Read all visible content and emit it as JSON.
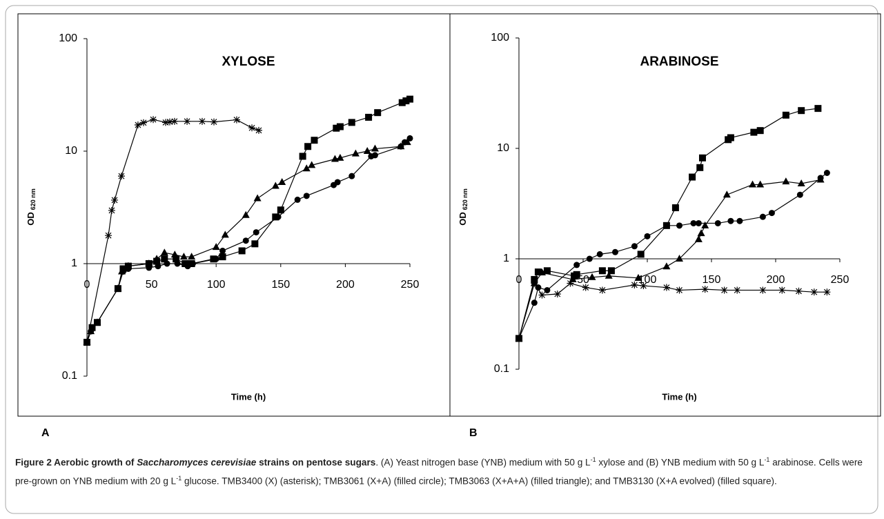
{
  "chart_data": [
    {
      "type": "line",
      "title": "XYLOSE",
      "xlabel": "Time (h)",
      "ylabel": "OD",
      "ylabel_sub": "620 nm",
      "xlim": [
        0,
        250
      ],
      "xticks": [
        0,
        50,
        100,
        150,
        200,
        250
      ],
      "ylim": [
        0.1,
        100
      ],
      "yticks": [
        0.1,
        1,
        10,
        100
      ],
      "log_y": true,
      "xaxis_crosses": 1,
      "series": [
        {
          "marker": "asterisk",
          "color": "#000000",
          "x": [
            0,
            16.6,
            19.2,
            21.4,
            26.7,
            39.5,
            43.8,
            51.3,
            60.9,
            64.1,
            67.8,
            77.5,
            89.2,
            98.3,
            115.9,
            127.7,
            133
          ],
          "values": [
            0.2,
            1.78,
            2.97,
            3.67,
            6.0,
            17.1,
            17.9,
            19.1,
            18,
            18.2,
            18.4,
            18.4,
            18.4,
            18.2,
            19.0,
            16.1,
            15.3
          ]
        },
        {
          "marker": "circle",
          "color": "#000000",
          "x": [
            0,
            3,
            8,
            24,
            28,
            32,
            48,
            55,
            62,
            70,
            78,
            82,
            100,
            105,
            123,
            131,
            148,
            163,
            170,
            191,
            194,
            205,
            220,
            223,
            243,
            246,
            250
          ],
          "values": [
            0.2,
            0.25,
            0.3,
            0.6,
            0.85,
            0.9,
            0.92,
            0.95,
            1.0,
            1.0,
            0.95,
            1.0,
            1.1,
            1.3,
            1.6,
            1.9,
            2.6,
            3.7,
            4.0,
            5.0,
            5.3,
            6.0,
            9.0,
            9.2,
            11,
            12,
            13
          ]
        },
        {
          "marker": "triangle",
          "color": "#000000",
          "x": [
            0,
            3,
            8,
            24,
            27,
            32,
            48,
            54,
            60,
            68,
            75,
            81,
            100,
            107,
            123,
            132,
            146,
            151,
            170,
            174,
            192,
            196,
            208,
            217,
            223,
            243,
            248
          ],
          "values": [
            0.2,
            0.25,
            0.3,
            0.6,
            0.85,
            0.95,
            1.0,
            1.1,
            1.25,
            1.2,
            1.15,
            1.15,
            1.4,
            1.8,
            2.7,
            3.8,
            4.9,
            5.3,
            7.0,
            7.5,
            8.5,
            8.7,
            9.5,
            10,
            10.5,
            11,
            12
          ]
        },
        {
          "marker": "square",
          "color": "#000000",
          "x": [
            0,
            4,
            8,
            24,
            28,
            32,
            48,
            54,
            60,
            69,
            76,
            81,
            98,
            105,
            120,
            130,
            146,
            150,
            167,
            171,
            176,
            193,
            196,
            205,
            218,
            225,
            244,
            247,
            250
          ],
          "values": [
            0.2,
            0.27,
            0.3,
            0.6,
            0.9,
            0.95,
            1.0,
            1.05,
            1.1,
            1.1,
            1.0,
            1.0,
            1.1,
            1.15,
            1.3,
            1.5,
            2.6,
            3.0,
            9.0,
            11,
            12.5,
            16,
            16.5,
            18,
            20,
            22,
            27,
            28,
            29
          ]
        }
      ]
    },
    {
      "type": "line",
      "title": "ARABINOSE",
      "xlabel": "Time (h)",
      "ylabel": "OD",
      "ylabel_sub": "620 nm",
      "xlim": [
        0,
        250
      ],
      "xticks": [
        0,
        50,
        100,
        150,
        200,
        250
      ],
      "ylim": [
        0.1,
        100
      ],
      "yticks": [
        0.1,
        1,
        10,
        100
      ],
      "log_y": true,
      "xaxis_crosses": 1,
      "series": [
        {
          "marker": "asterisk",
          "color": "#000000",
          "x": [
            0,
            12,
            18,
            30,
            40,
            52,
            65,
            90,
            97,
            115,
            125,
            145,
            160,
            170,
            190,
            205,
            218,
            230,
            240
          ],
          "values": [
            0.19,
            0.6,
            0.47,
            0.48,
            0.6,
            0.55,
            0.52,
            0.58,
            0.57,
            0.55,
            0.52,
            0.53,
            0.52,
            0.52,
            0.52,
            0.52,
            0.51,
            0.5,
            0.5
          ]
        },
        {
          "marker": "circle",
          "color": "#000000",
          "x": [
            0,
            12,
            15,
            22,
            45,
            55,
            63,
            75,
            90,
            100,
            115,
            125,
            136,
            140,
            155,
            165,
            172,
            190,
            197,
            219,
            235,
            240
          ],
          "values": [
            0.19,
            0.4,
            0.55,
            0.52,
            0.88,
            1.0,
            1.1,
            1.15,
            1.3,
            1.6,
            2.0,
            2.0,
            2.1,
            2.1,
            2.1,
            2.2,
            2.2,
            2.4,
            2.6,
            3.8,
            5.4,
            6.0
          ]
        },
        {
          "marker": "triangle",
          "color": "#000000",
          "x": [
            0,
            12,
            18,
            42,
            57,
            70,
            93,
            115,
            125,
            140,
            142,
            145,
            162,
            182,
            188,
            208,
            220,
            235
          ],
          "values": [
            0.19,
            0.6,
            0.75,
            0.65,
            0.68,
            0.7,
            0.67,
            0.85,
            1.0,
            1.5,
            1.7,
            2.0,
            3.8,
            4.7,
            4.7,
            5.0,
            4.8,
            5.2
          ]
        },
        {
          "marker": "square",
          "color": "#000000",
          "x": [
            0,
            12,
            15,
            22,
            43,
            45,
            65,
            72,
            95,
            115,
            122,
            135,
            141,
            143,
            163,
            165,
            183,
            188,
            208,
            220,
            233
          ],
          "values": [
            0.19,
            0.65,
            0.76,
            0.78,
            0.7,
            0.72,
            0.78,
            0.78,
            1.1,
            2.0,
            2.9,
            5.5,
            6.7,
            8.2,
            12,
            12.5,
            14,
            14.5,
            20,
            22,
            23
          ]
        }
      ]
    }
  ],
  "panels": [
    "A",
    "B"
  ],
  "caption": [
    {
      "text": "Figure 2 Aerobic growth of ",
      "style": "bold"
    },
    {
      "text": "Saccharomyces cerevisiae",
      "style": "bolditalic"
    },
    {
      "text": " strains on pentose sugars",
      "style": "bold"
    },
    {
      "text": ". (A) Yeast nitrogen base (YNB) medium with 50 g L",
      "style": "normal"
    },
    {
      "text": "-1",
      "style": "sup"
    },
    {
      "text": " xylose and (B) YNB medium with 50 g L",
      "style": "normal"
    },
    {
      "text": "-1",
      "style": "sup"
    },
    {
      "text": " arabinose. Cells were pre-grown on YNB medium with 20 g L",
      "style": "normal"
    },
    {
      "text": "-1",
      "style": "sup"
    },
    {
      "text": " glucose.  TMB3400 (X) (asterisk);  TMB3061 (X+A) (filled circle); TMB3063 (X+A+A) (filled triangle); and TMB3130 (X+A evolved) (filled square).",
      "style": "normal"
    }
  ]
}
